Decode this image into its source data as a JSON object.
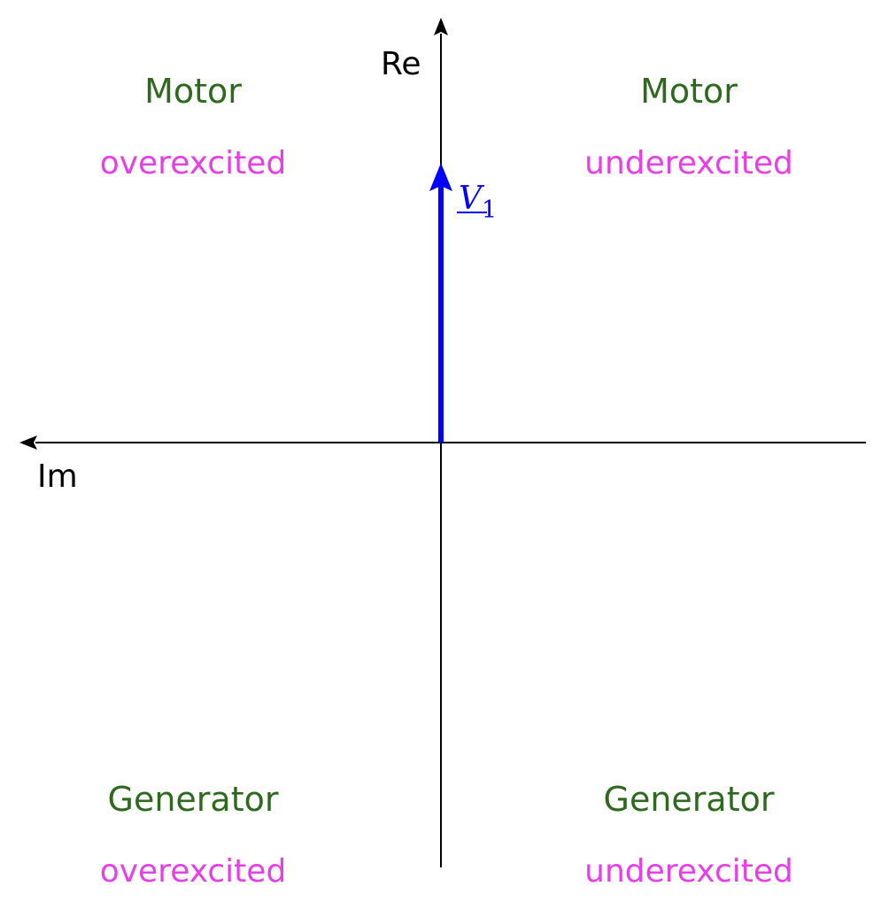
{
  "axes": {
    "real_label": "Re",
    "imag_label": "Im"
  },
  "phasor": {
    "symbol": "V",
    "subscript": "1",
    "color": "#0000ff"
  },
  "quadrants": {
    "top_left": {
      "role": "Motor",
      "state": "overexcited"
    },
    "top_right": {
      "role": "Motor",
      "state": "underexcited"
    },
    "bottom_left": {
      "role": "Generator",
      "state": "overexcited"
    },
    "bottom_right": {
      "role": "Generator",
      "state": "underexcited"
    }
  },
  "colors": {
    "role_text": "#2e6a1e",
    "state_text": "#e83ee8",
    "axes": "#000000"
  }
}
